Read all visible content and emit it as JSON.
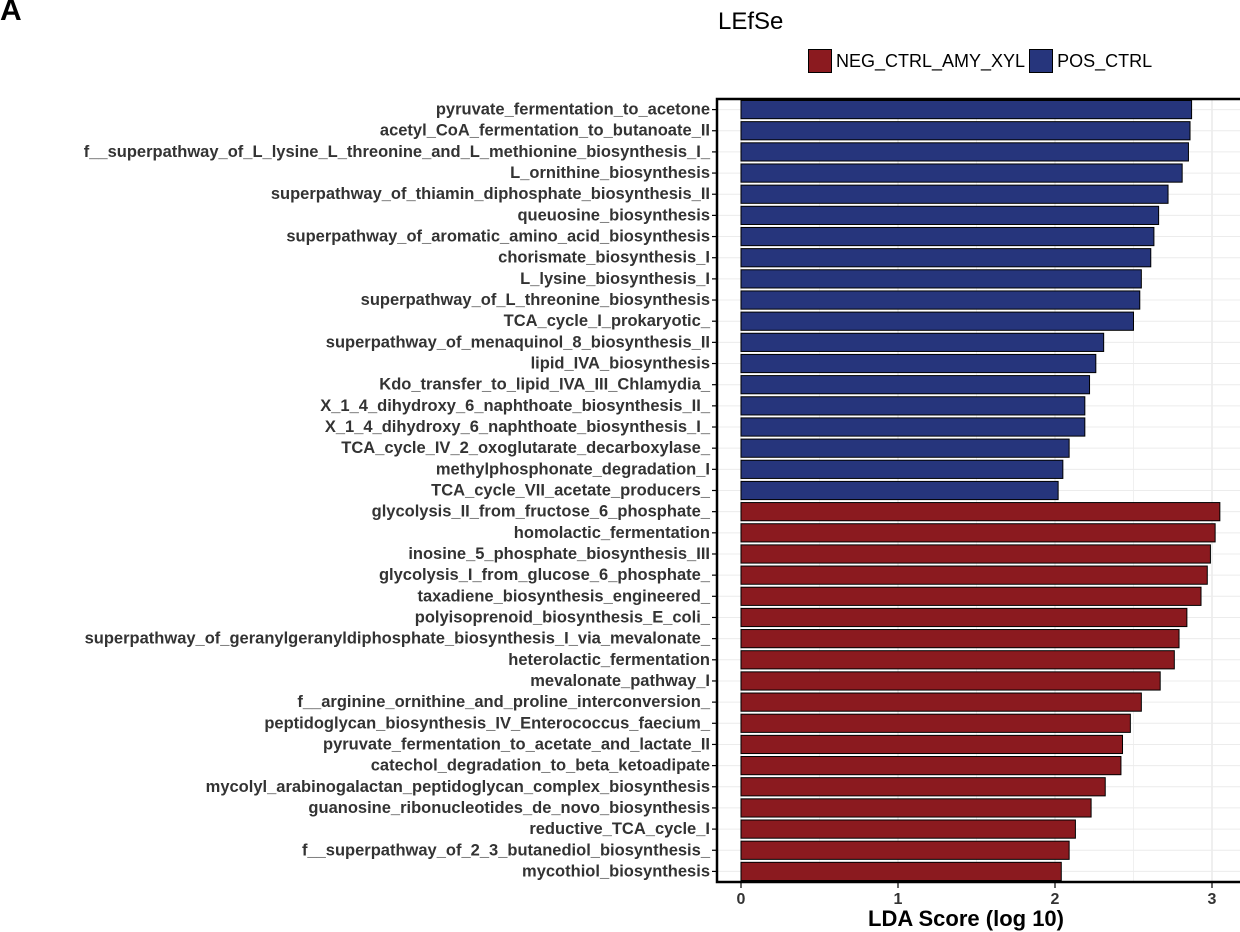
{
  "panel_label": "A",
  "chart_data": {
    "type": "bar",
    "orientation": "horizontal",
    "title": "LEfSe",
    "xlabel": "LDA Score (log 10)",
    "ylabel": "",
    "xlim": [
      -0.2,
      3.2
    ],
    "xticks": [
      0,
      1,
      2,
      3
    ],
    "grid": true,
    "legend_position": "top-right",
    "colors": {
      "NEG_CTRL_AMY_XYL": "#8b1a1f",
      "POS_CTRL": "#26357c"
    },
    "legend": [
      "NEG_CTRL_AMY_XYL",
      "POS_CTRL"
    ],
    "categories": [
      "pyruvate_fermentation_to_acetone",
      "acetyl_CoA_fermentation_to_butanoate_II",
      "f__superpathway_of_L_lysine_L_threonine_and_L_methionine_biosynthesis_I_",
      "L_ornithine_biosynthesis",
      "superpathway_of_thiamin_diphosphate_biosynthesis_II",
      "queuosine_biosynthesis",
      "superpathway_of_aromatic_amino_acid_biosynthesis",
      "chorismate_biosynthesis_I",
      "L_lysine_biosynthesis_I",
      "superpathway_of_L_threonine_biosynthesis",
      "TCA_cycle_I_prokaryotic_",
      "superpathway_of_menaquinol_8_biosynthesis_II",
      "lipid_IVA_biosynthesis",
      "Kdo_transfer_to_lipid_IVA_III_Chlamydia_",
      "X_1_4_dihydroxy_6_naphthoate_biosynthesis_II_",
      "X_1_4_dihydroxy_6_naphthoate_biosynthesis_I_",
      "TCA_cycle_IV_2_oxoglutarate_decarboxylase_",
      "methylphosphonate_degradation_I",
      "TCA_cycle_VII_acetate_producers_",
      "glycolysis_II_from_fructose_6_phosphate_",
      "homolactic_fermentation",
      "inosine_5_phosphate_biosynthesis_III",
      "glycolysis_I_from_glucose_6_phosphate_",
      "taxadiene_biosynthesis_engineered_",
      "polyisoprenoid_biosynthesis_E_coli_",
      "superpathway_of_geranylgeranyldiphosphate_biosynthesis_I_via_mevalonate_",
      "heterolactic_fermentation",
      "mevalonate_pathway_I",
      "f__arginine_ornithine_and_proline_interconversion_",
      "peptidoglycan_biosynthesis_IV_Enterococcus_faecium_",
      "pyruvate_fermentation_to_acetate_and_lactate_II",
      "catechol_degradation_to_beta_ketoadipate",
      "mycolyl_arabinogalactan_peptidoglycan_complex_biosynthesis",
      "guanosine_ribonucleotides_de_novo_biosynthesis",
      "reductive_TCA_cycle_I",
      "f__superpathway_of_2_3_butanediol_biosynthesis_",
      "mycothiol_biosynthesis"
    ],
    "values": [
      2.87,
      2.86,
      2.85,
      2.81,
      2.72,
      2.66,
      2.63,
      2.61,
      2.55,
      2.54,
      2.5,
      2.31,
      2.26,
      2.22,
      2.19,
      2.19,
      2.09,
      2.05,
      2.02,
      3.05,
      3.02,
      2.99,
      2.97,
      2.93,
      2.84,
      2.79,
      2.76,
      2.67,
      2.55,
      2.48,
      2.43,
      2.42,
      2.32,
      2.23,
      2.13,
      2.09,
      2.04
    ],
    "groups": [
      "POS_CTRL",
      "POS_CTRL",
      "POS_CTRL",
      "POS_CTRL",
      "POS_CTRL",
      "POS_CTRL",
      "POS_CTRL",
      "POS_CTRL",
      "POS_CTRL",
      "POS_CTRL",
      "POS_CTRL",
      "POS_CTRL",
      "POS_CTRL",
      "POS_CTRL",
      "POS_CTRL",
      "POS_CTRL",
      "POS_CTRL",
      "POS_CTRL",
      "POS_CTRL",
      "NEG_CTRL_AMY_XYL",
      "NEG_CTRL_AMY_XYL",
      "NEG_CTRL_AMY_XYL",
      "NEG_CTRL_AMY_XYL",
      "NEG_CTRL_AMY_XYL",
      "NEG_CTRL_AMY_XYL",
      "NEG_CTRL_AMY_XYL",
      "NEG_CTRL_AMY_XYL",
      "NEG_CTRL_AMY_XYL",
      "NEG_CTRL_AMY_XYL",
      "NEG_CTRL_AMY_XYL",
      "NEG_CTRL_AMY_XYL",
      "NEG_CTRL_AMY_XYL",
      "NEG_CTRL_AMY_XYL",
      "NEG_CTRL_AMY_XYL",
      "NEG_CTRL_AMY_XYL",
      "NEG_CTRL_AMY_XYL",
      "NEG_CTRL_AMY_XYL"
    ]
  }
}
